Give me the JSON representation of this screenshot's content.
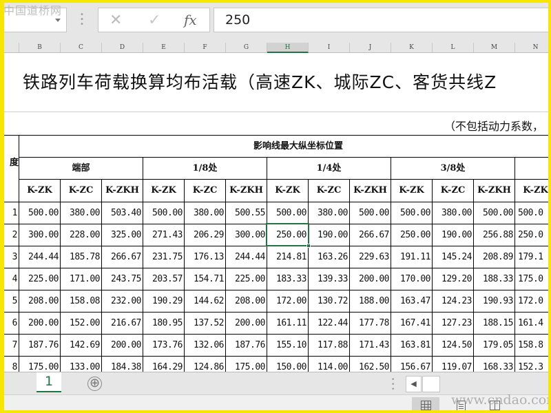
{
  "watermark_top": "中国道桥网",
  "watermark_bottom": "www.cndao.com",
  "formula_bar": {
    "cancel_icon": "✕",
    "enter_icon": "✓",
    "fx_label": "fx",
    "value": "250"
  },
  "columns": [
    "B",
    "C",
    "D",
    "E",
    "F",
    "G",
    "H",
    "I",
    "J",
    "K",
    "L",
    "M",
    "N"
  ],
  "selected_column": "H",
  "sheet": {
    "title": "铁路列车荷载换算均布活载（高速ZK、城际ZC、客货共线Z",
    "subtitle": "（不包括动力系数，",
    "span_header": "度",
    "main_header": "影响线最大纵坐标位置",
    "groups": [
      "端部",
      "1/8处",
      "1/4处",
      "3/8处"
    ],
    "sub_headers": [
      "K-ZK",
      "K-ZC",
      "K-ZKH",
      "K-ZK",
      "K-ZC",
      "K-ZKH",
      "K-ZK",
      "K-ZC",
      "K-ZKH",
      "K-ZK",
      "K-ZC",
      "K-ZKH",
      "K-ZK"
    ],
    "rows": [
      {
        "span": "1",
        "values": [
          "500.00",
          "380.00",
          "503.40",
          "500.00",
          "380.00",
          "500.55",
          "500.00",
          "380.00",
          "500.00",
          "500.00",
          "380.00",
          "500.00",
          "500.0"
        ]
      },
      {
        "span": "2",
        "values": [
          "300.00",
          "228.00",
          "325.00",
          "271.43",
          "206.29",
          "300.00",
          "250.00",
          "190.00",
          "266.67",
          "250.00",
          "190.00",
          "256.88",
          "250.0"
        ]
      },
      {
        "span": "3",
        "values": [
          "244.44",
          "185.78",
          "266.67",
          "231.75",
          "176.13",
          "244.44",
          "214.81",
          "163.26",
          "229.63",
          "191.11",
          "145.24",
          "208.89",
          "179.1"
        ]
      },
      {
        "span": "4",
        "values": [
          "225.00",
          "171.00",
          "243.75",
          "203.57",
          "154.71",
          "225.00",
          "183.33",
          "139.33",
          "200.00",
          "170.00",
          "129.20",
          "188.33",
          "175.0"
        ]
      },
      {
        "span": "5",
        "values": [
          "208.00",
          "158.08",
          "232.00",
          "190.29",
          "144.62",
          "208.00",
          "172.00",
          "130.72",
          "188.00",
          "163.47",
          "124.23",
          "190.93",
          "172.0"
        ]
      },
      {
        "span": "6",
        "values": [
          "200.00",
          "152.00",
          "216.67",
          "180.95",
          "137.52",
          "200.00",
          "161.11",
          "122.44",
          "177.78",
          "167.41",
          "127.23",
          "188.15",
          "161.4"
        ]
      },
      {
        "span": "7",
        "values": [
          "187.76",
          "142.69",
          "200.00",
          "173.76",
          "132.06",
          "187.76",
          "155.10",
          "117.88",
          "171.43",
          "163.81",
          "124.50",
          "179.05",
          "158.8"
        ]
      },
      {
        "span": "8",
        "values": [
          "175.00",
          "133.00",
          "184.38",
          "164.29",
          "124.86",
          "175.00",
          "150.00",
          "114.00",
          "162.50",
          "156.67",
          "119.07",
          "168.33",
          "152.3"
        ]
      }
    ]
  },
  "tabs": [
    {
      "label": "1",
      "active": true
    }
  ],
  "add_sheet_icon": "⊕",
  "accent_color": "#217346",
  "icons": {
    "normal_view": "grid-icon",
    "page_layout": "page-layout-icon",
    "page_break": "page-break-icon"
  }
}
